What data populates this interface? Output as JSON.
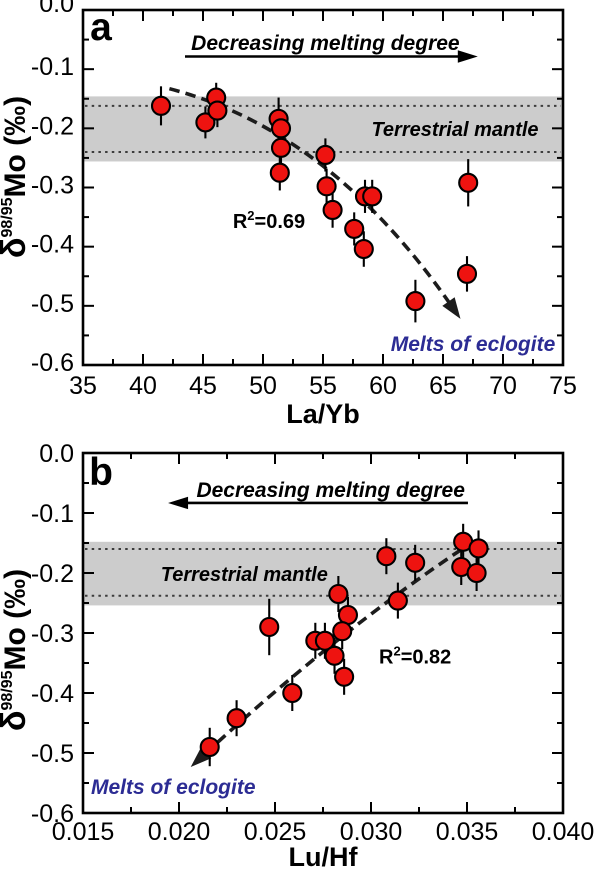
{
  "figure": {
    "background": "#ffffff",
    "point_fill": "#ee1310",
    "point_stroke": "#000000",
    "band_fill": "#cccccc",
    "band_line_color": "#3c3c3c",
    "trend_color": "#1c1c1c",
    "blue": "#2c2c94",
    "axis_color": "#000000"
  },
  "chart_data": [
    {
      "panel_label": "a",
      "type": "scatter",
      "xlabel": "La/Yb",
      "ylabel": {
        "delta": "δ",
        "superscript": "98/95",
        "rest": "Mo (‰)"
      },
      "xlim": [
        35,
        75
      ],
      "ylim": [
        -0.6,
        0
      ],
      "x_ticks": [
        35,
        40,
        45,
        50,
        55,
        60,
        65,
        70,
        75
      ],
      "x_tick_labels": [
        "35",
        "40",
        "45",
        "50",
        "55",
        "60",
        "65",
        "70",
        "75"
      ],
      "x_minor_step": 2.5,
      "y_ticks": [
        0,
        -0.1,
        -0.2,
        -0.3,
        -0.4,
        -0.5,
        -0.6
      ],
      "y_tick_labels": [
        "0.0",
        "-0.1",
        "-0.2",
        "-0.3",
        "-0.4",
        "-0.5",
        "-0.6"
      ],
      "y_minor_step": 0.05,
      "band": {
        "label": "Terrestrial mantle",
        "top": -0.146,
        "bottom": -0.256,
        "dotted": [
          -0.162,
          -0.24
        ],
        "label_pos": [
          66,
          -0.201
        ]
      },
      "melting_arrow": {
        "text": "Decreasing melting degree",
        "y": -0.0786,
        "x_from": 43.5,
        "x_to": 67.9,
        "direction": "right",
        "text_center": [
          55.2,
          -0.0676
        ]
      },
      "r2": {
        "text_base": "R",
        "text_sup": "2",
        "text_rest": "=0.69",
        "center": [
          50.5,
          -0.357
        ]
      },
      "eclogite": {
        "text": "Melts of eclogite",
        "center": [
          67.5,
          -0.5645
        ]
      },
      "trend": {
        "from": [
          42.2,
          -0.133
        ],
        "ctrl": [
          55.5,
          -0.203
        ],
        "to": [
          65.6,
          -0.497
        ]
      },
      "points": [
        [
          41.5,
          -0.162,
          0.033
        ],
        [
          45.2,
          -0.19,
          0.027
        ],
        [
          46.1,
          -0.148,
          0.025
        ],
        [
          46.2,
          -0.17,
          0.028
        ],
        [
          51.3,
          -0.184,
          0.036
        ],
        [
          51.5,
          -0.2,
          0.03
        ],
        [
          51.5,
          -0.233,
          0.03
        ],
        [
          51.4,
          -0.275,
          0.03
        ],
        [
          55.2,
          -0.245,
          0.028
        ],
        [
          55.3,
          -0.298,
          0.03
        ],
        [
          55.8,
          -0.338,
          0.03
        ],
        [
          57.6,
          -0.37,
          0.028
        ],
        [
          58.4,
          -0.404,
          0.03
        ],
        [
          58.5,
          -0.315,
          0.028
        ],
        [
          59.1,
          -0.315,
          0.028
        ],
        [
          62.7,
          -0.492,
          0.036
        ],
        [
          67.1,
          -0.292,
          0.04
        ],
        [
          67.0,
          -0.446,
          0.03
        ]
      ]
    },
    {
      "panel_label": "b",
      "type": "scatter",
      "xlabel": "Lu/Hf",
      "ylabel": {
        "delta": "δ",
        "superscript": "98/95",
        "rest": "Mo (‰)"
      },
      "xlim": [
        0.015,
        0.04
      ],
      "ylim": [
        -0.6,
        0
      ],
      "x_ticks": [
        0.015,
        0.02,
        0.025,
        0.03,
        0.035,
        0.04
      ],
      "x_tick_labels": [
        "0.015",
        "0.020",
        "0.025",
        "0.030",
        "0.035",
        "0.040"
      ],
      "x_minor_step": 0.0025,
      "y_ticks": [
        0,
        -0.1,
        -0.2,
        -0.3,
        -0.4,
        -0.5,
        -0.6
      ],
      "y_tick_labels": [
        "0.0",
        "-0.1",
        "-0.2",
        "-0.3",
        "-0.4",
        "-0.5",
        "-0.6"
      ],
      "y_minor_step": 0.05,
      "band": {
        "label": "Terrestrial mantle",
        "top": -0.148,
        "bottom": -0.254,
        "dotted": [
          -0.16,
          -0.238
        ],
        "label_pos": [
          0.0234,
          -0.202
        ]
      },
      "melting_arrow": {
        "text": "Decreasing melting degree",
        "y": -0.0833,
        "x_from": 0.03505,
        "x_to": 0.01943,
        "direction": "left",
        "text_center": [
          0.0279,
          -0.0735
        ]
      },
      "r2": {
        "text_base": "R",
        "text_sup": "2",
        "text_rest": "=0.82",
        "center": [
          0.0323,
          -0.339
        ]
      },
      "eclogite": {
        "text": "Melts of eclogite",
        "center": [
          0.0197,
          -0.557
        ]
      },
      "trend": {
        "from": [
          0.0347,
          -0.161
        ],
        "ctrl": [
          0.0282,
          -0.3
        ],
        "to": [
          0.0213,
          -0.503
        ]
      },
      "points": [
        [
          0.0216,
          -0.49,
          0.032
        ],
        [
          0.023,
          -0.442,
          0.03
        ],
        [
          0.0259,
          -0.4,
          0.03
        ],
        [
          0.0247,
          -0.29,
          0.047
        ],
        [
          0.0271,
          -0.313,
          0.03
        ],
        [
          0.0276,
          -0.313,
          0.03
        ],
        [
          0.0281,
          -0.338,
          0.03
        ],
        [
          0.0286,
          -0.373,
          0.03
        ],
        [
          0.0283,
          -0.235,
          0.03
        ],
        [
          0.0288,
          -0.27,
          0.03
        ],
        [
          0.0285,
          -0.297,
          0.03
        ],
        [
          0.0314,
          -0.246,
          0.03
        ],
        [
          0.0308,
          -0.172,
          0.03
        ],
        [
          0.0323,
          -0.183,
          0.03
        ],
        [
          0.0348,
          -0.148,
          0.03
        ],
        [
          0.0356,
          -0.159,
          0.03
        ],
        [
          0.0347,
          -0.19,
          0.03
        ],
        [
          0.0355,
          -0.2,
          0.03
        ]
      ]
    }
  ]
}
